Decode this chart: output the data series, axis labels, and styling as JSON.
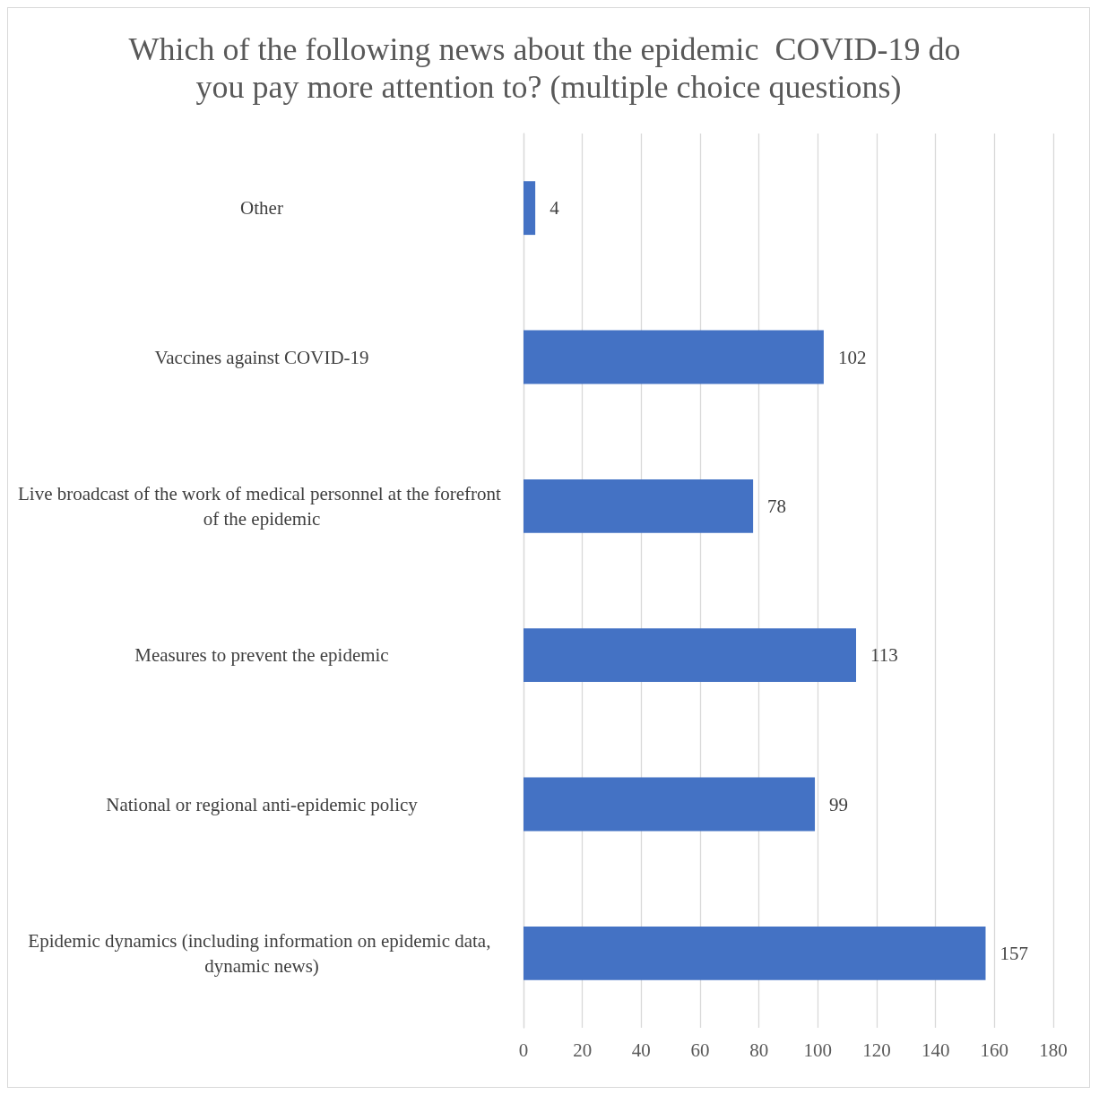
{
  "chart_data": {
    "type": "bar",
    "orientation": "horizontal",
    "title": "Which of the following news about the epidemic  COVID-19 do you pay more attention to? (multiple choice questions)",
    "categories": [
      "Other",
      "Vaccines against COVID-19",
      "Live broadcast of the work of medical personnel at the forefront of the epidemic",
      "Measures to prevent the epidemic",
      "National or regional anti-epidemic policy",
      "Epidemic dynamics (including information on epidemic data, dynamic news)"
    ],
    "values": [
      4,
      102,
      78,
      113,
      99,
      157
    ],
    "color": "#4472c4",
    "xlim": [
      0,
      180
    ],
    "xticks": [
      0,
      20,
      40,
      60,
      80,
      100,
      120,
      140,
      160,
      180
    ],
    "grid": "x",
    "data_labels": true
  }
}
